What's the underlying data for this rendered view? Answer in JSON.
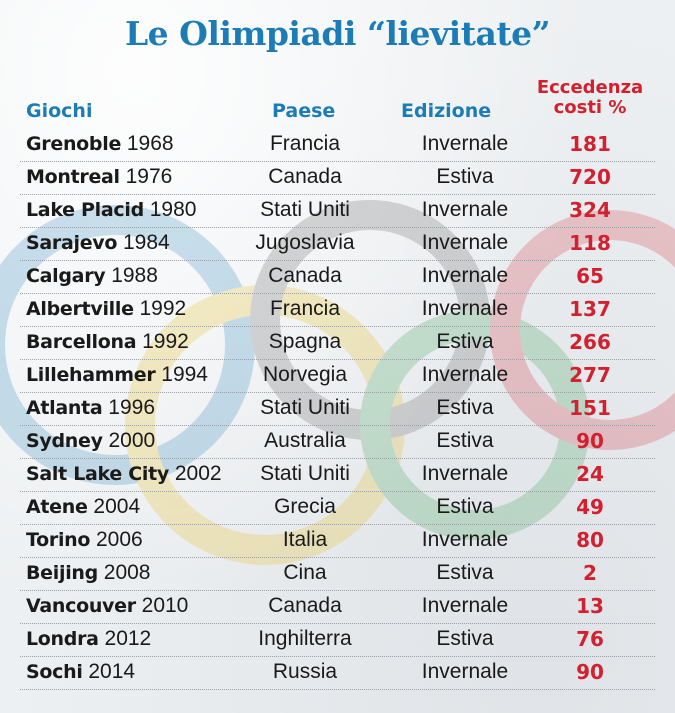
{
  "title": "Le Olimpiadi “lievitate”",
  "headers": {
    "games": "Giochi",
    "country": "Paese",
    "edition": "Edizione",
    "cost_line1": "Eccedenza",
    "cost_line2": "costi %"
  },
  "colors": {
    "title_blue": "#1b7cb6",
    "value_red": "#d2202e",
    "text": "#1a1a1a"
  },
  "chart_data": {
    "type": "table",
    "title": "Le Olimpiadi “lievitate”",
    "columns": [
      "Giochi",
      "Paese",
      "Edizione",
      "Eccedenza costi %"
    ],
    "rows": [
      {
        "city": "Grenoble",
        "year": "1968",
        "country": "Francia",
        "edition": "Invernale",
        "cost_overrun": 181
      },
      {
        "city": "Montreal",
        "year": "1976",
        "country": "Canada",
        "edition": "Estiva",
        "cost_overrun": 720
      },
      {
        "city": "Lake Placid",
        "year": "1980",
        "country": "Stati Uniti",
        "edition": "Invernale",
        "cost_overrun": 324
      },
      {
        "city": "Sarajevo",
        "year": "1984",
        "country": "Jugoslavia",
        "edition": "Invernale",
        "cost_overrun": 118
      },
      {
        "city": "Calgary",
        "year": "1988",
        "country": "Canada",
        "edition": "Invernale",
        "cost_overrun": 65
      },
      {
        "city": "Albertville",
        "year": "1992",
        "country": "Francia",
        "edition": "Invernale",
        "cost_overrun": 137
      },
      {
        "city": "Barcellona",
        "year": "1992",
        "country": "Spagna",
        "edition": "Estiva",
        "cost_overrun": 266
      },
      {
        "city": "Lillehammer",
        "year": "1994",
        "country": "Norvegia",
        "edition": "Invernale",
        "cost_overrun": 277
      },
      {
        "city": "Atlanta",
        "year": "1996",
        "country": "Stati Uniti",
        "edition": "Estiva",
        "cost_overrun": 151
      },
      {
        "city": "Sydney",
        "year": "2000",
        "country": "Australia",
        "edition": "Estiva",
        "cost_overrun": 90
      },
      {
        "city": "Salt Lake City",
        "year": "2002",
        "country": "Stati Uniti",
        "edition": "Invernale",
        "cost_overrun": 24
      },
      {
        "city": "Atene",
        "year": "2004",
        "country": "Grecia",
        "edition": "Estiva",
        "cost_overrun": 49
      },
      {
        "city": "Torino",
        "year": "2006",
        "country": "Italia",
        "edition": "Invernale",
        "cost_overrun": 80
      },
      {
        "city": "Beijing",
        "year": "2008",
        "country": "Cina",
        "edition": "Estiva",
        "cost_overrun": 2
      },
      {
        "city": "Vancouver",
        "year": "2010",
        "country": "Canada",
        "edition": "Invernale",
        "cost_overrun": 13
      },
      {
        "city": "Londra",
        "year": "2012",
        "country": "Inghilterra",
        "edition": "Estiva",
        "cost_overrun": 76
      },
      {
        "city": "Sochi",
        "year": "2014",
        "country": "Russia",
        "edition": "Invernale",
        "cost_overrun": 90
      }
    ]
  }
}
